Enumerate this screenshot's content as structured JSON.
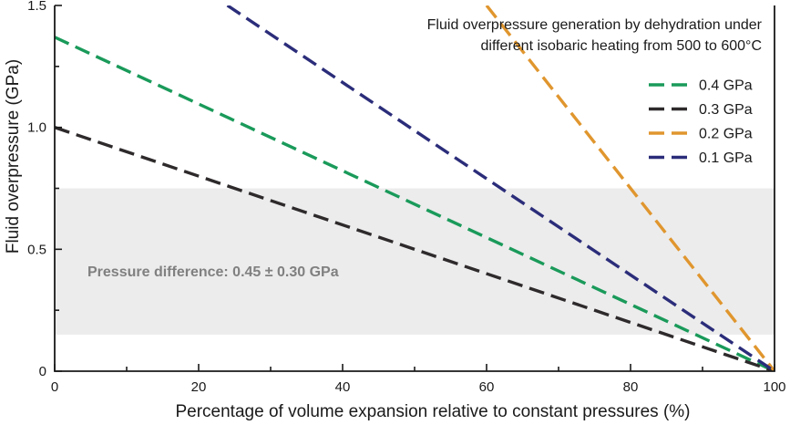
{
  "chart_data": {
    "type": "line",
    "title": "Fluid overpressure generation by dehydration under",
    "subtitle": "different isobaric heating from 500 to 600°C",
    "xlabel": "Percentage of volume expansion relative to constant pressures (%)",
    "ylabel": "Fluid overpressure (GPa)",
    "xlim": [
      0,
      100
    ],
    "ylim": [
      0,
      1.5
    ],
    "xticks": [
      0,
      20,
      40,
      60,
      80,
      100
    ],
    "yticks": [
      0,
      0.5,
      1.0,
      1.5
    ],
    "ytick_labels": [
      "0",
      "0.5",
      "1.0",
      "1.5"
    ],
    "band": {
      "y0": 0.15,
      "y1": 0.75,
      "color": "#ececec",
      "label": "Pressure difference: 0.45 ± 0.30 GPa",
      "label_color": "#808080"
    },
    "legend_position": "top-right",
    "series": [
      {
        "name": "0.4 GPa",
        "color": "#1a9a5a",
        "x": [
          0,
          100
        ],
        "y": [
          1.37,
          0
        ]
      },
      {
        "name": "0.3 GPa",
        "color": "#2e2a2b",
        "x": [
          0,
          100
        ],
        "y": [
          1.0,
          0
        ]
      },
      {
        "name": "0.2 GPa",
        "color": "#e0962e",
        "x": [
          60,
          100
        ],
        "y": [
          1.5,
          0
        ]
      },
      {
        "name": "0.1 GPa",
        "color": "#2b2d7a",
        "x": [
          24,
          100
        ],
        "y": [
          1.5,
          0
        ]
      }
    ]
  }
}
